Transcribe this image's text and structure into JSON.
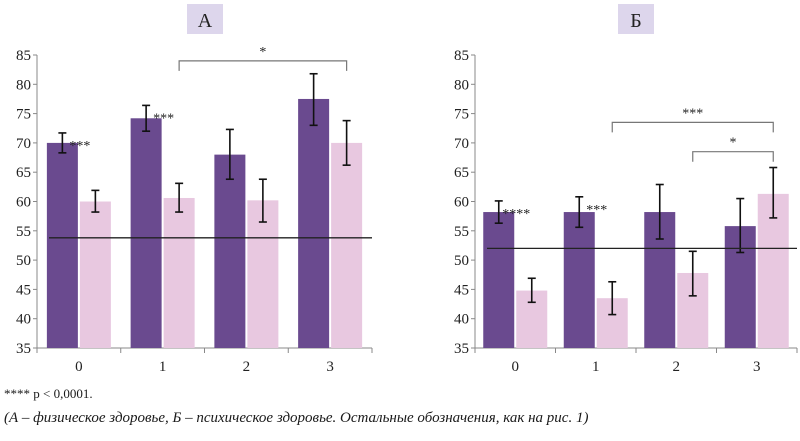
{
  "chart_data": [
    {
      "type": "bar",
      "title": "А",
      "categories": [
        "0",
        "1",
        "2",
        "3"
      ],
      "ylim": [
        35,
        85
      ],
      "yticks": [
        35,
        40,
        45,
        50,
        55,
        60,
        65,
        70,
        75,
        80,
        85
      ],
      "series": [
        {
          "values": [
            70,
            74.2,
            68,
            77.5
          ],
          "err_low": [
            68.3,
            72,
            63.8,
            73
          ],
          "err_high": [
            71.7,
            76.4,
            72.3,
            81.8
          ],
          "color": "#6a4a8f"
        },
        {
          "values": [
            60,
            60.6,
            60.2,
            70
          ],
          "err_low": [
            58.2,
            58.2,
            56.5,
            66.2
          ],
          "err_high": [
            61.9,
            63.1,
            63.8,
            73.8
          ],
          "color": "#e8c8e0"
        }
      ],
      "reference_line": 53.8,
      "annotations": [
        {
          "text": "***",
          "category": 0
        },
        {
          "text": "***",
          "category": 1
        }
      ],
      "brackets": [
        {
          "text": "*",
          "from": 1,
          "to": 3,
          "y": 84
        }
      ]
    },
    {
      "type": "bar",
      "title": "Б",
      "categories": [
        "0",
        "1",
        "2",
        "3"
      ],
      "ylim": [
        35,
        85
      ],
      "yticks": [
        35,
        40,
        45,
        50,
        55,
        60,
        65,
        70,
        75,
        80,
        85
      ],
      "series": [
        {
          "values": [
            58.2,
            58.2,
            58.2,
            55.8
          ],
          "err_low": [
            56.3,
            55.6,
            53.6,
            51.3
          ],
          "err_high": [
            60.1,
            60.8,
            62.9,
            60.5
          ],
          "color": "#6a4a8f"
        },
        {
          "values": [
            44.8,
            43.5,
            47.8,
            61.3
          ],
          "err_low": [
            42.8,
            40.7,
            43.9,
            57.2
          ],
          "err_high": [
            46.9,
            46.3,
            51.5,
            65.8
          ],
          "color": "#e8c8e0"
        }
      ],
      "reference_line": 52,
      "annotations": [
        {
          "text": "****",
          "category": 0
        },
        {
          "text": "***",
          "category": 1
        }
      ],
      "brackets": [
        {
          "text": "***",
          "from": 1,
          "to": 3,
          "y": 73.5
        },
        {
          "text": "*",
          "from": 2,
          "to": 3,
          "y": 68.5
        }
      ]
    }
  ],
  "footnote": "**** p < 0,0001.",
  "caption": "(А – физическое здоровье, Б – психическое здоровье. Остальные обозначения, как на рис. 1)"
}
